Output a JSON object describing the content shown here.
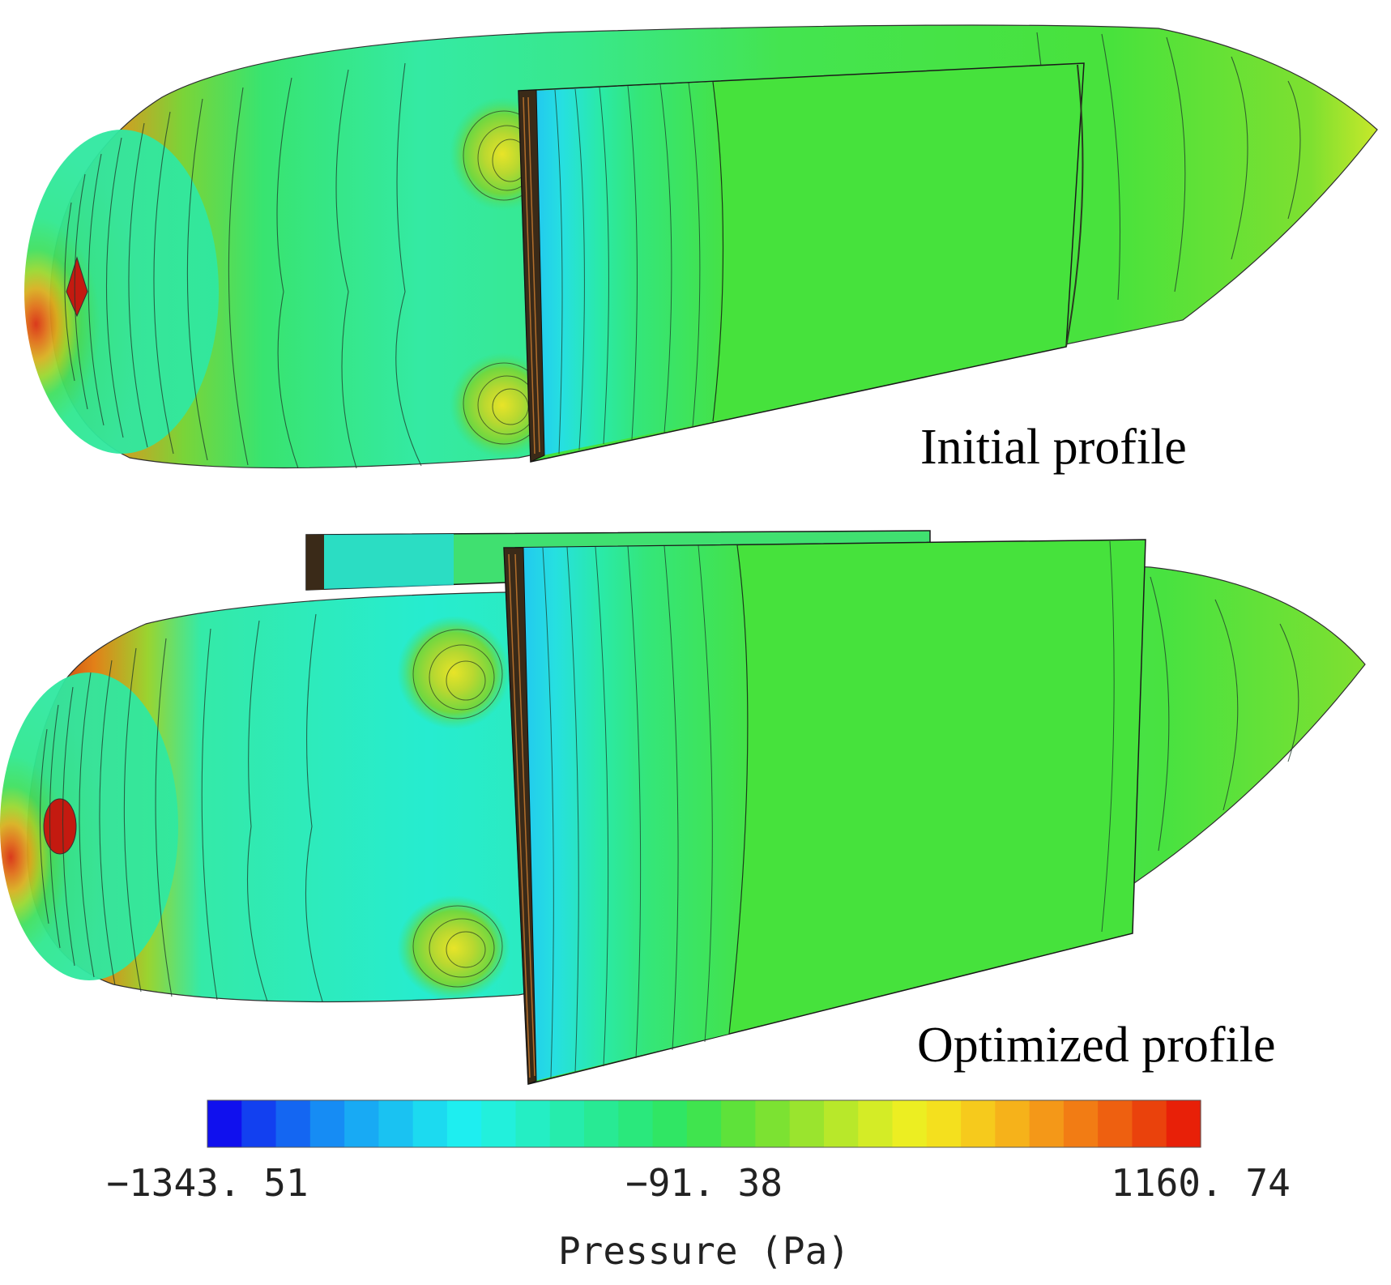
{
  "figure": {
    "panels": [
      {
        "label": "Initial profile"
      },
      {
        "label": "Optimized profile"
      }
    ]
  },
  "colorbar": {
    "title": "Pressure (Pa)",
    "min_label": "−1343. 51",
    "mid_label": "−91. 38",
    "max_label": "1160. 74",
    "colors": [
      "#1010ee",
      "#1240f0",
      "#1466f2",
      "#168cf4",
      "#18aaf4",
      "#1ac2f2",
      "#1cdaf0",
      "#1eeef0",
      "#22f0dc",
      "#24eec4",
      "#26ecac",
      "#28ea94",
      "#2ae87c",
      "#30e664",
      "#40e44e",
      "#5ee23a",
      "#7ce232",
      "#9ae42e",
      "#b8e82a",
      "#d4ec26",
      "#ecee22",
      "#f4e01e",
      "#f6ca1c",
      "#f6b21a",
      "#f49818",
      "#f27c14",
      "#ee6010",
      "#ea420c",
      "#e82008"
    ]
  }
}
